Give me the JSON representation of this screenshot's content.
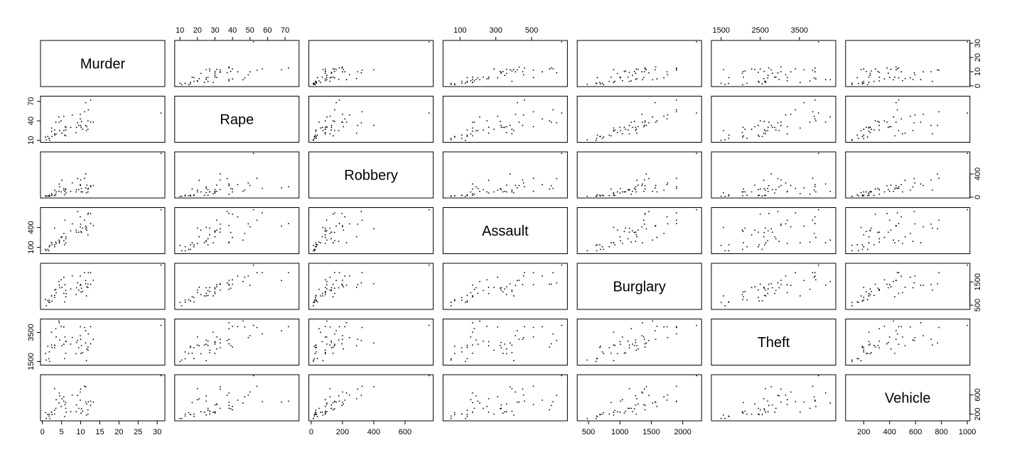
{
  "chart_data": {
    "type": "scatter-matrix",
    "variables": [
      {
        "name": "Murder",
        "lim": [
          -0.5,
          32
        ],
        "xticks": [
          0,
          5,
          10,
          15,
          20,
          25,
          30
        ],
        "yticks": [
          0,
          10,
          20,
          30
        ],
        "values": [
          10.2,
          11.3,
          7.8,
          10.5,
          11.0,
          5.6,
          4.5,
          5.9,
          31.0,
          9.9,
          11.6,
          4.4,
          2.4,
          10.0,
          6.1,
          1.8,
          6.2,
          8.8,
          12.6,
          1.7,
          9.2,
          3.2,
          9.9,
          2.4,
          11.5,
          8.9,
          3.2,
          2.5,
          12.6,
          0.8,
          5.1,
          12.0,
          11.3,
          11.9,
          1.0,
          5.6,
          7.4,
          4.9,
          6.1,
          3.6,
          11.9,
          1.9,
          10.1,
          13.3,
          3.5,
          1.4,
          9.5,
          4.3,
          5.8,
          3.2
        ]
      },
      {
        "name": "Rape",
        "lim": [
          7,
          78
        ],
        "xticks": [
          10,
          20,
          30,
          40,
          50,
          60,
          70
        ],
        "yticks": [
          10,
          40,
          70
        ],
        "values": [
          39,
          68,
          49,
          27,
          54,
          47,
          25,
          31,
          52,
          43,
          31,
          38,
          24,
          33,
          26,
          13,
          30,
          22,
          38,
          13,
          37,
          20,
          50,
          29,
          25,
          30,
          18,
          16,
          72,
          15,
          21,
          57,
          33,
          27,
          11,
          25,
          30,
          40,
          17,
          20,
          40,
          10,
          30,
          38,
          38,
          16,
          33,
          46,
          18,
          26
        ]
      },
      {
        "name": "Robbery",
        "lim": [
          -15,
          780
        ],
        "xticks": [
          0,
          200,
          400,
          600
        ],
        "yticks": [
          0,
          400
        ],
        "values": [
          149,
          160,
          245,
          91,
          325,
          121,
          176,
          99,
          754,
          215,
          206,
          226,
          30,
          297,
          128,
          33,
          71,
          90,
          196,
          21,
          320,
          120,
          200,
          60,
          75,
          130,
          27,
          33,
          180,
          25,
          290,
          150,
          400,
          90,
          14,
          150,
          100,
          90,
          140,
          90,
          140,
          14,
          90,
          200,
          50,
          20,
          130,
          100,
          40,
          30
        ]
      },
      {
        "name": "Assault",
        "lim": [
          5,
          700
        ],
        "xticks": [
          100,
          300,
          500
        ],
        "yticks": [
          100,
          400
        ],
        "values": [
          325,
          420,
          455,
          390,
          510,
          310,
          190,
          510,
          668,
          560,
          360,
          170,
          170,
          450,
          230,
          110,
          260,
          360,
          610,
          50,
          640,
          390,
          410,
          170,
          400,
          330,
          110,
          140,
          460,
          70,
          260,
          620,
          380,
          290,
          50,
          200,
          350,
          250,
          170,
          160,
          600,
          130,
          340,
          430,
          180,
          70,
          330,
          210,
          140,
          140
        ]
      },
      {
        "name": "Burglary",
        "lim": [
          320,
          2300
        ],
        "xticks": [
          500,
          1000,
          1500,
          2000
        ],
        "yticks": [
          500,
          1500
        ],
        "values": [
          1230,
          1560,
          1760,
          1090,
          1900,
          1700,
          1250,
          1380,
          2220,
          1750,
          1290,
          1360,
          900,
          1390,
          1130,
          720,
          1000,
          960,
          1400,
          630,
          1460,
          1150,
          1350,
          900,
          900,
          1250,
          830,
          680,
          1900,
          740,
          1270,
          1900,
          1420,
          1260,
          480,
          1010,
          1200,
          1590,
          860,
          1040,
          1400,
          620,
          1070,
          1570,
          1180,
          690,
          1150,
          1520,
          640,
          920
        ]
      },
      {
        "name": "Theft",
        "lim": [
          1250,
          4430
        ],
        "xticks": [
          1500,
          2500,
          3500
        ],
        "yticks": [
          1500,
          3500
        ],
        "values": [
          2600,
          3620,
          3150,
          2110,
          3840,
          3880,
          2980,
          3190,
          3990,
          3900,
          2360,
          4170,
          2640,
          3030,
          2900,
          2160,
          2870,
          2040,
          2720,
          1690,
          2950,
          2630,
          3280,
          3520,
          1560,
          2810,
          2450,
          2470,
          3900,
          2050,
          2590,
          3400,
          2780,
          2280,
          1600,
          2690,
          2700,
          3920,
          2070,
          3190,
          2500,
          1500,
          2060,
          3030,
          3770,
          2550,
          2450,
          4290,
          1700,
          2610
        ]
      },
      {
        "name": "Vehicle",
        "lim": [
          60,
          1020
        ],
        "xticks": [
          200,
          400,
          600,
          800,
          1000
        ],
        "yticks": [
          200,
          600
        ],
        "values": [
          310,
          450,
          595,
          260,
          780,
          560,
          580,
          400,
          1000,
          490,
          410,
          640,
          240,
          720,
          320,
          200,
          240,
          250,
          380,
          160,
          590,
          730,
          660,
          240,
          180,
          390,
          200,
          190,
          470,
          230,
          520,
          460,
          770,
          200,
          110,
          470,
          250,
          360,
          440,
          500,
          290,
          110,
          220,
          450,
          320,
          190,
          320,
          430,
          150,
          280
        ]
      }
    ]
  }
}
